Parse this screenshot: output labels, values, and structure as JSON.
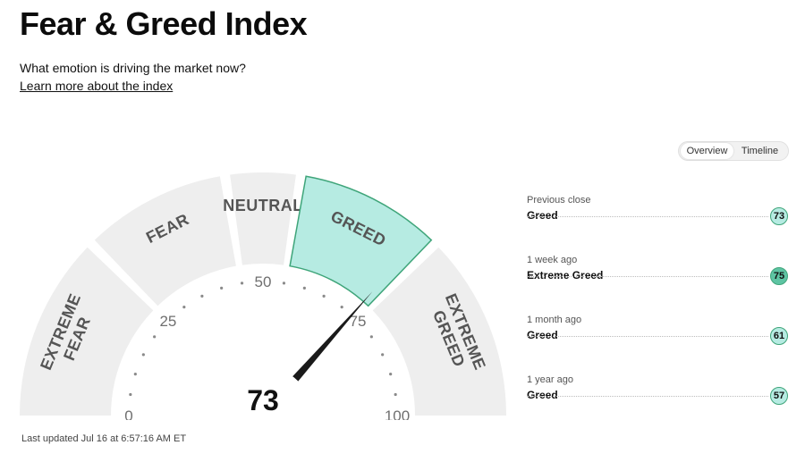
{
  "header": {
    "title": "Fear & Greed Index",
    "subtitle": "What emotion is driving the market now?",
    "learn_more": "Learn more about the index"
  },
  "view_toggle": {
    "options": [
      "Overview",
      "Timeline"
    ],
    "selected": "Overview"
  },
  "gauge": {
    "score": 73,
    "score_label": "73",
    "rating": "Greed",
    "range": [
      0,
      100
    ],
    "segments": [
      {
        "lines": [
          "EXTREME",
          "FEAR"
        ],
        "from": 0,
        "to": 25
      },
      {
        "lines": [
          "FEAR"
        ],
        "from": 25,
        "to": 45
      },
      {
        "lines": [
          "NEUTRAL"
        ],
        "from": 45,
        "to": 55
      },
      {
        "lines": [
          "GREED"
        ],
        "from": 55,
        "to": 75
      },
      {
        "lines": [
          "EXTREME",
          "GREED"
        ],
        "from": 75,
        "to": 100
      }
    ],
    "tick_labels": [
      {
        "value": 0,
        "text": "0"
      },
      {
        "value": 25,
        "text": "25"
      },
      {
        "value": 50,
        "text": "50"
      },
      {
        "value": 75,
        "text": "75"
      },
      {
        "value": 100,
        "text": "100"
      }
    ],
    "colors": {
      "segment_fill": "#eeeeee",
      "active_fill": "#b6ebe2",
      "active_stroke": "#3fa57a",
      "needle": "#1a1a1a",
      "dots": "#8a8a8a"
    }
  },
  "history": [
    {
      "period": "Previous close",
      "rating": "Greed",
      "value": 73,
      "value_label": "73",
      "color": "#b6ebe2"
    },
    {
      "period": "1 week ago",
      "rating": "Extreme Greed",
      "value": 75,
      "value_label": "75",
      "color": "#5ec4a3"
    },
    {
      "period": "1 month ago",
      "rating": "Greed",
      "value": 61,
      "value_label": "61",
      "color": "#b6ebe2"
    },
    {
      "period": "1 year ago",
      "rating": "Greed",
      "value": 57,
      "value_label": "57",
      "color": "#b6ebe2"
    }
  ],
  "footer": {
    "last_updated": "Last updated Jul 16 at 6:57:16 AM ET"
  }
}
